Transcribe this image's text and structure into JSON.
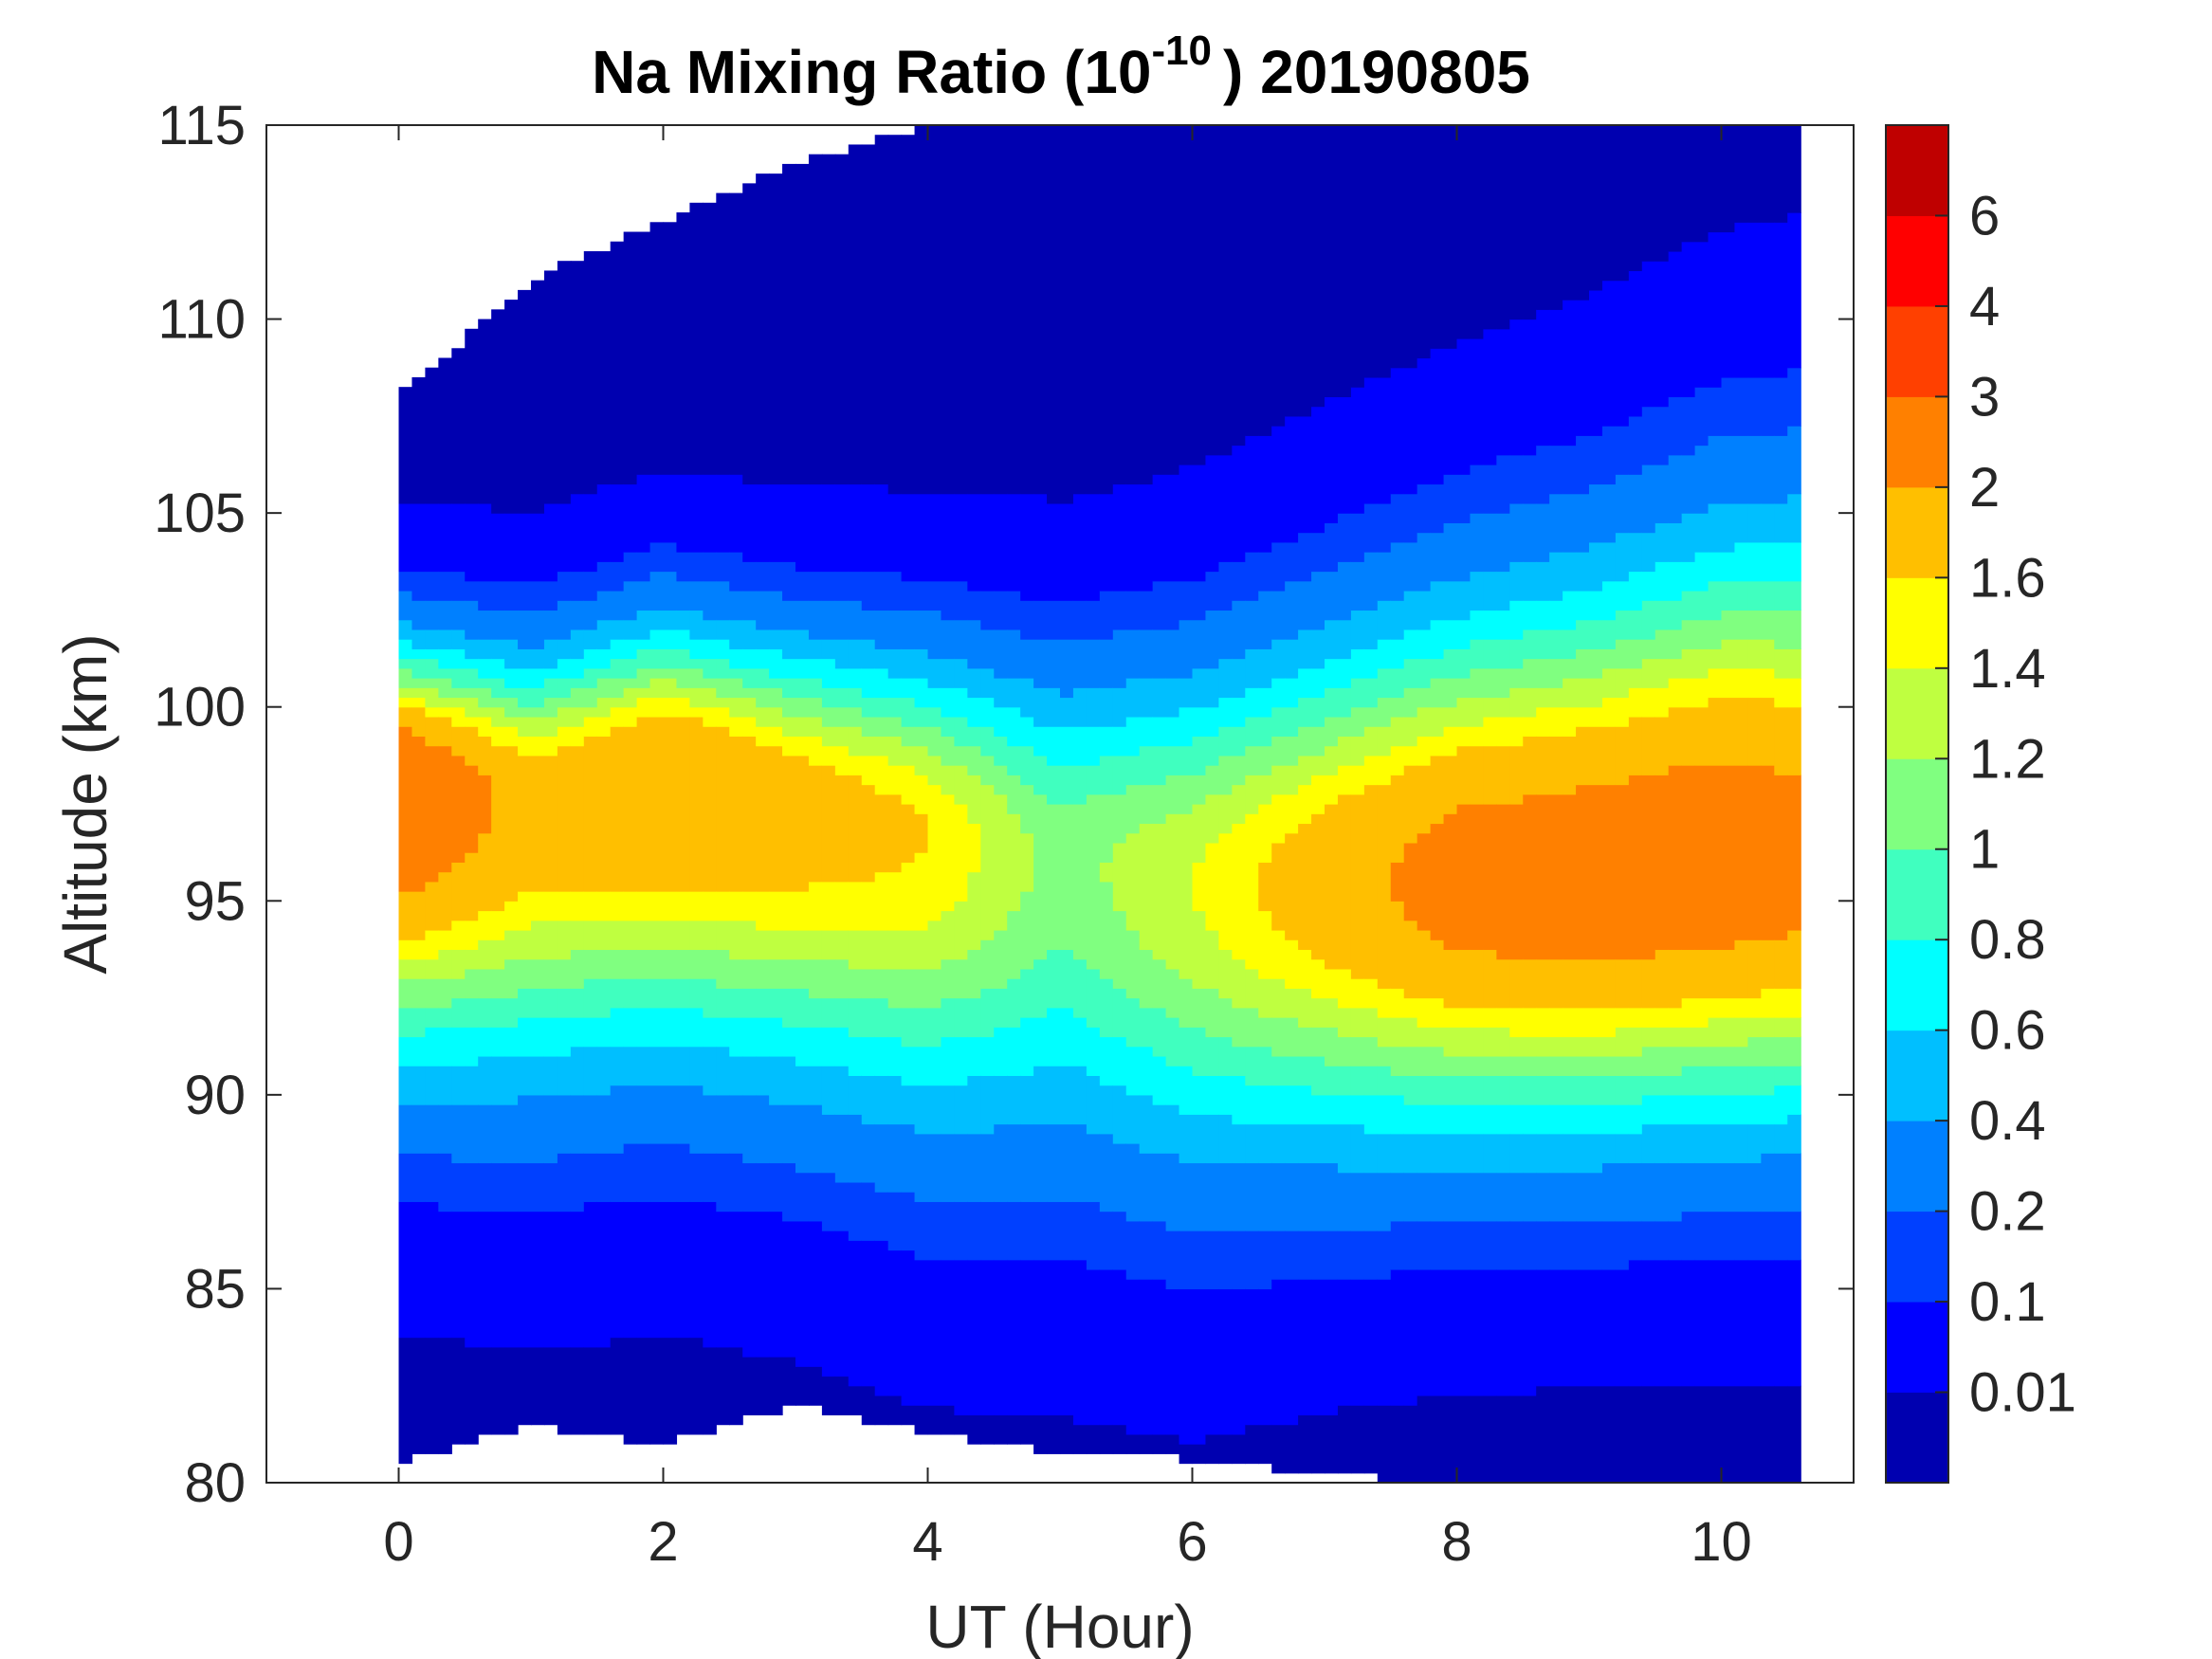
{
  "chart_data": {
    "type": "heatmap",
    "subtype": "filled-contour",
    "title": {
      "main": "Na Mixing Ratio (10",
      "superscript": "-10",
      "suffix": ") 20190805"
    },
    "xlabel": "UT (Hour)",
    "ylabel": "Altitude (km)",
    "xlim": [
      -1,
      11
    ],
    "ylim": [
      80,
      115
    ],
    "xticks": [
      "0",
      "2",
      "4",
      "6",
      "8",
      "10"
    ],
    "xtick_values": [
      0,
      2,
      4,
      6,
      8,
      10
    ],
    "yticks": [
      "80",
      "85",
      "90",
      "95",
      "100",
      "105",
      "110",
      "115"
    ],
    "ytick_values": [
      80,
      85,
      90,
      95,
      100,
      105,
      110,
      115
    ],
    "data_time_range": [
      0,
      10.6
    ],
    "colorbar": {
      "levels": [
        0,
        0.01,
        0.1,
        0.2,
        0.4,
        0.6,
        0.8,
        1,
        1.2,
        1.4,
        1.6,
        2,
        3,
        4,
        6,
        7
      ],
      "tick_labels": [
        "0.01",
        "0.1",
        "0.2",
        "0.4",
        "0.6",
        "0.8",
        "1",
        "1.2",
        "1.4",
        "1.6",
        "2",
        "3",
        "4",
        "6"
      ],
      "colors": [
        "#0000B0",
        "#0000FF",
        "#0040FF",
        "#0080FF",
        "#00BFFF",
        "#00FFFF",
        "#40FFBF",
        "#80FF80",
        "#BFFF40",
        "#FFFF00",
        "#FFBF00",
        "#FF8000",
        "#FF4000",
        "#FF0000",
        "#BF0000"
      ],
      "location": "right"
    },
    "layer_model": {
      "time_hours": [
        0,
        1,
        2,
        3,
        4,
        5,
        6,
        7,
        8,
        9,
        10,
        10.6
      ],
      "peak_mixing_ratio": [
        2.5,
        1.8,
        2.0,
        1.8,
        1.6,
        1.1,
        1.4,
        1.8,
        2.2,
        2.3,
        2.3,
        2.2
      ],
      "peak_altitude_km": [
        98,
        97.5,
        98.3,
        97.5,
        96.8,
        96,
        95.5,
        95.5,
        95.5,
        95.5,
        96,
        96
      ],
      "lower_scale_km": [
        6.0,
        6.2,
        6.3,
        6.3,
        6.6,
        6.6,
        6.5,
        6.0,
        5.7,
        5.6,
        5.8,
        5.8
      ],
      "upper_scale_km": [
        3.1,
        3.3,
        3.4,
        3.6,
        3.9,
        4.3,
        4.8,
        5.4,
        6.0,
        6.5,
        7.0,
        7.2
      ],
      "data_bottom_km": [
        80.5,
        81.5,
        81.0,
        82.0,
        81.3,
        80.8,
        80.6,
        80.2,
        80.0,
        80.0,
        80.0,
        80.0
      ],
      "data_top_km": [
        108.0,
        111.0,
        112.5,
        114.0,
        115,
        115,
        115,
        115,
        115,
        115,
        115,
        115
      ]
    }
  }
}
